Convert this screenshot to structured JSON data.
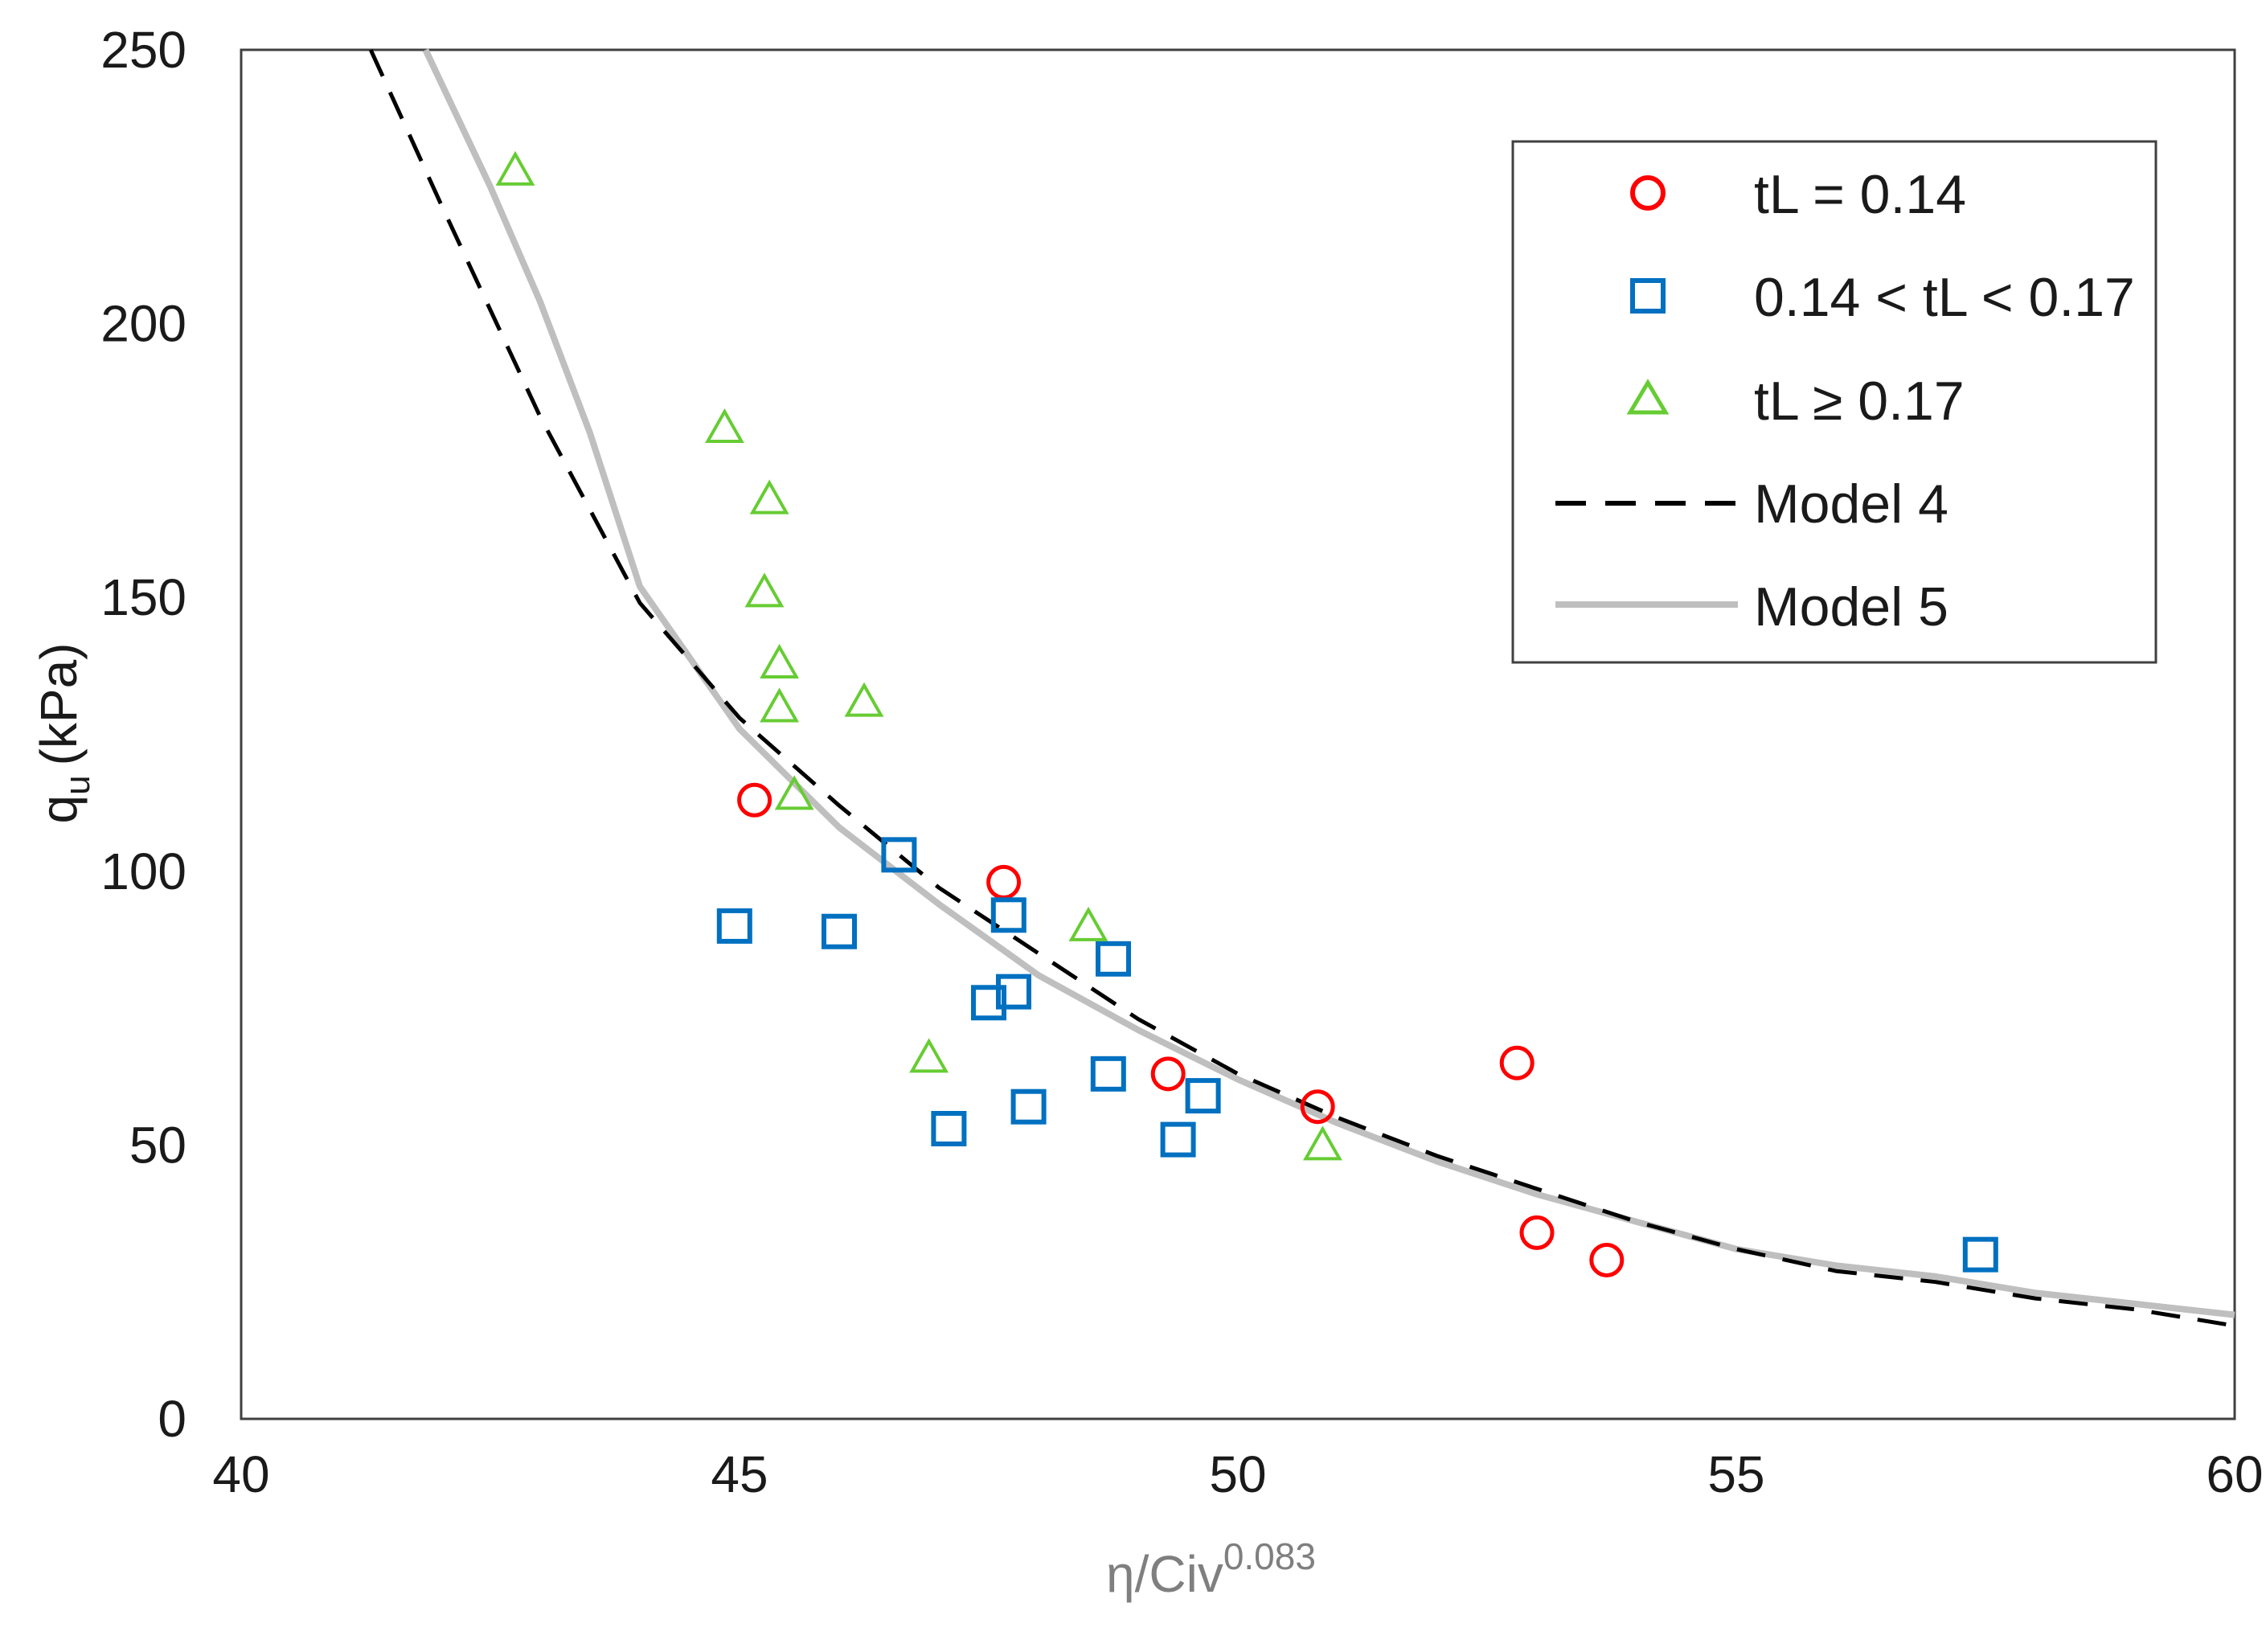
{
  "chart_data": {
    "type": "scatter",
    "title": "",
    "xlabel": {
      "base": "η/Civ",
      "superscript": "0.083"
    },
    "ylabel": {
      "base": "q",
      "subscript": "u",
      "unit": "(kPa)"
    },
    "xlim": [
      40,
      60
    ],
    "ylim": [
      0,
      250
    ],
    "x_ticks": [
      "40",
      "45",
      "50",
      "55",
      "60"
    ],
    "y_ticks": [
      "0",
      "50",
      "100",
      "150",
      "200",
      "250"
    ],
    "x_tick_values": [
      40,
      45,
      50,
      55,
      60
    ],
    "y_tick_values": [
      0,
      50,
      100,
      150,
      200,
      250
    ],
    "grid": false,
    "legend_position": "top-right",
    "series": [
      {
        "name": "tL = 0.14",
        "marker": "circle",
        "color": "#ff0000",
        "points": [
          [
            45.15,
            113
          ],
          [
            47.65,
            98
          ],
          [
            49.3,
            63
          ],
          [
            50.8,
            57
          ],
          [
            52.8,
            65
          ],
          [
            53.0,
            34
          ],
          [
            53.7,
            29
          ]
        ]
      },
      {
        "name": "0.14 < tL < 0.17",
        "marker": "square",
        "color": "#0070c0",
        "points": [
          [
            44.95,
            90
          ],
          [
            46.0,
            89
          ],
          [
            46.6,
            103
          ],
          [
            47.1,
            53
          ],
          [
            47.5,
            76
          ],
          [
            47.7,
            92
          ],
          [
            47.75,
            78
          ],
          [
            47.9,
            57
          ],
          [
            48.7,
            63
          ],
          [
            48.75,
            84
          ],
          [
            49.4,
            51
          ],
          [
            49.65,
            59
          ],
          [
            57.45,
            30
          ]
        ]
      },
      {
        "name": "tL ≥ 0.17",
        "marker": "triangle",
        "color": "#66cc33",
        "points": [
          [
            42.75,
            228
          ],
          [
            44.85,
            181
          ],
          [
            45.3,
            168
          ],
          [
            45.25,
            151
          ],
          [
            45.4,
            138
          ],
          [
            45.4,
            130
          ],
          [
            46.25,
            131
          ],
          [
            45.55,
            114
          ],
          [
            46.9,
            66
          ],
          [
            48.5,
            90
          ],
          [
            50.85,
            50
          ]
        ]
      },
      {
        "name": "Model 4",
        "type": "line",
        "style": "dashed",
        "color": "#000000",
        "points": [
          [
            41.3,
            250
          ],
          [
            42,
            222
          ],
          [
            43,
            183
          ],
          [
            44,
            149
          ],
          [
            45,
            128
          ],
          [
            46,
            112
          ],
          [
            47,
            97
          ],
          [
            48,
            85
          ],
          [
            49,
            73
          ],
          [
            50,
            63
          ],
          [
            51,
            55
          ],
          [
            52,
            48
          ],
          [
            53,
            42
          ],
          [
            54,
            36
          ],
          [
            55,
            31
          ],
          [
            56,
            27
          ],
          [
            57,
            25
          ],
          [
            58,
            22
          ],
          [
            59,
            20
          ],
          [
            60,
            17
          ]
        ]
      },
      {
        "name": "Model 5",
        "type": "line",
        "style": "solid",
        "color": "#bfbfbf",
        "points": [
          [
            41.85,
            250
          ],
          [
            42.5,
            225
          ],
          [
            43,
            204
          ],
          [
            43.5,
            180
          ],
          [
            44,
            152
          ],
          [
            45,
            126
          ],
          [
            46,
            108
          ],
          [
            47,
            94
          ],
          [
            48,
            81
          ],
          [
            49,
            71
          ],
          [
            50,
            62
          ],
          [
            51,
            54
          ],
          [
            52,
            47
          ],
          [
            53,
            41
          ],
          [
            54,
            36
          ],
          [
            55,
            31
          ],
          [
            56,
            28
          ],
          [
            57,
            26
          ],
          [
            58,
            23
          ],
          [
            59,
            21
          ],
          [
            60,
            19
          ]
        ]
      }
    ]
  }
}
